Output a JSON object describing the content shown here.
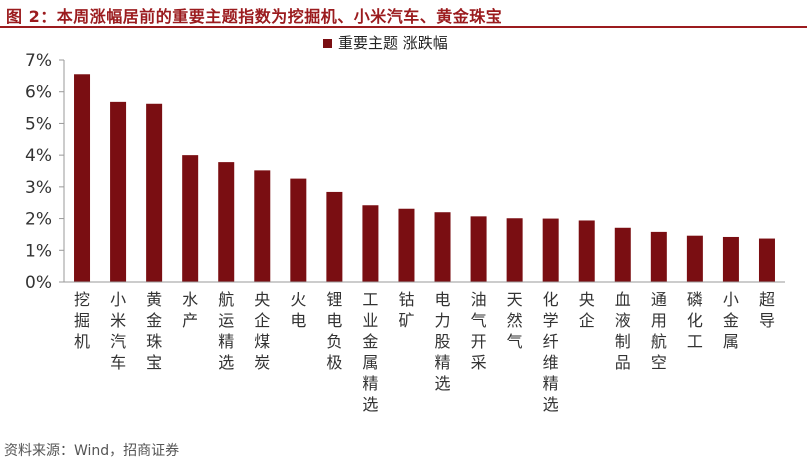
{
  "figure_title": "图 2：本周涨幅居前的重要主题指数为挖掘机、小米汽车、黄金珠宝",
  "source": "资料来源：Wind，招商证券",
  "colors": {
    "bar": "#7a0e12",
    "title": "#9b1b1e",
    "axis": "#999999",
    "text": "#333333"
  },
  "chart_data": {
    "type": "bar",
    "ylim": [
      0,
      7
    ],
    "yticks": [
      "0%",
      "1%",
      "2%",
      "3%",
      "4%",
      "5%",
      "6%",
      "7%"
    ],
    "legend": {
      "label": "重要主题 涨跌幅",
      "position": "top"
    },
    "grid": false,
    "categories": [
      "挖掘机",
      "小米汽车",
      "黄金珠宝",
      "水产",
      "航运精选",
      "央企煤炭",
      "火电",
      "锂电负极",
      "工业金属精选",
      "钴矿",
      "电力股精选",
      "油气开采",
      "天然气",
      "化学纤维精选",
      "央企",
      "血液制品",
      "通用航空",
      "磷化工",
      "小金属",
      "超导"
    ],
    "values": [
      6.55,
      5.68,
      5.62,
      4.0,
      3.78,
      3.52,
      3.26,
      2.84,
      2.42,
      2.31,
      2.2,
      2.07,
      2.01,
      2.0,
      1.94,
      1.71,
      1.58,
      1.46,
      1.42,
      1.37
    ]
  }
}
